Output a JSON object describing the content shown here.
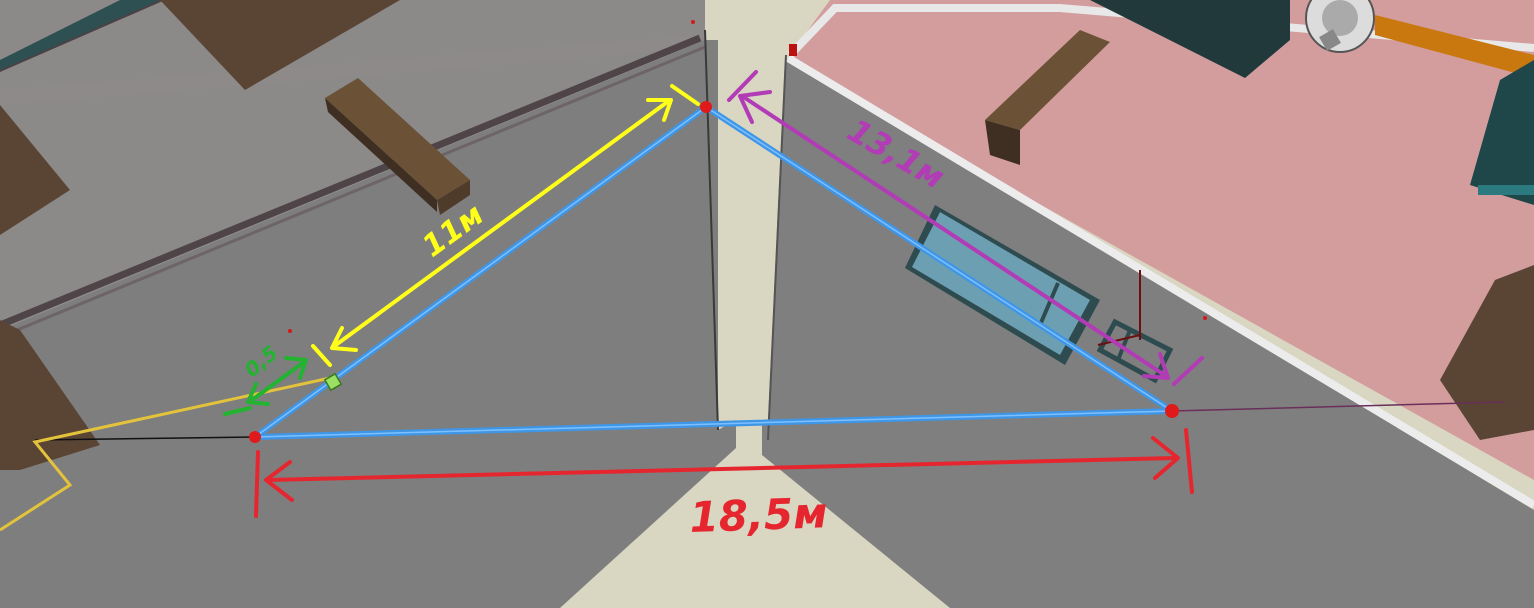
{
  "labels": {
    "bottom": "18,5м",
    "left_upper": "11м",
    "right_upper": "13,1м",
    "small": "0,5"
  },
  "colors": {
    "background_floor": "#d9d6c2",
    "left_room_floor": "#8c8989",
    "right_room_floor": "#d39d9e",
    "wall_face": "#7e7e7e",
    "wall_edge": "#4f4549",
    "blue_line": "#3f96e6",
    "yellow_mark": "#ffff1a",
    "purple_mark": "#b23bb6",
    "green_mark": "#22b331",
    "red_mark": "#e6262e"
  }
}
